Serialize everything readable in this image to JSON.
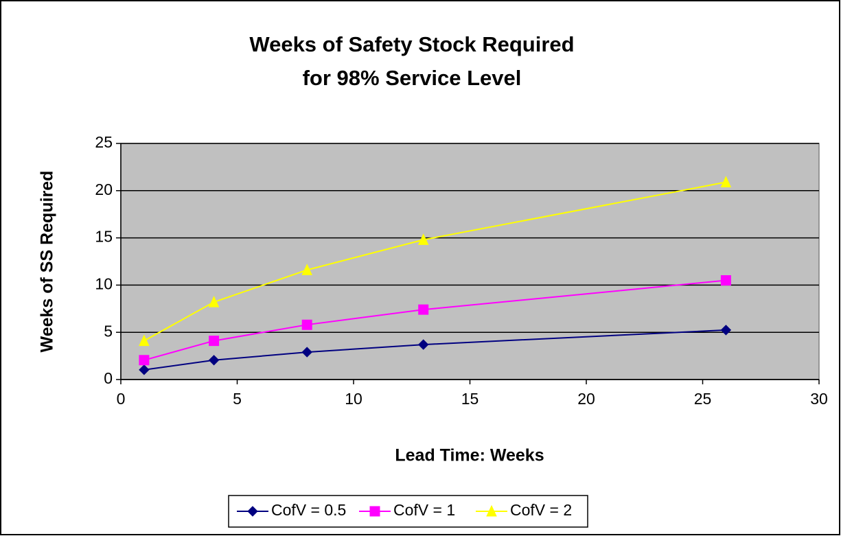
{
  "chart_data": {
    "type": "line",
    "title": [
      "Weeks of Safety Stock Required",
      "for 98% Service Level"
    ],
    "x_label": "Lead Time: Weeks",
    "y_label": "Weeks of SS Required",
    "x": [
      1,
      4,
      8,
      13,
      26
    ],
    "series": [
      {
        "name": "CofV = 0.5",
        "color": "#000080",
        "marker": "diamond",
        "values": [
          1.03,
          2.05,
          2.9,
          3.7,
          5.24
        ]
      },
      {
        "name": "CofV = 1",
        "color": "#ff00ff",
        "marker": "square",
        "values": [
          2.05,
          4.1,
          5.8,
          7.4,
          10.5
        ]
      },
      {
        "name": "CofV = 2",
        "color": "#ffff00",
        "marker": "triangle",
        "values": [
          4.1,
          8.2,
          11.6,
          14.8,
          20.9
        ]
      }
    ],
    "xlim": [
      0,
      30
    ],
    "xticks": [
      0,
      5,
      10,
      15,
      20,
      25,
      30
    ],
    "ylim": [
      0,
      25
    ],
    "yticks": [
      0,
      5,
      10,
      15,
      20,
      25
    ],
    "grid": true,
    "legend": "bottom"
  }
}
